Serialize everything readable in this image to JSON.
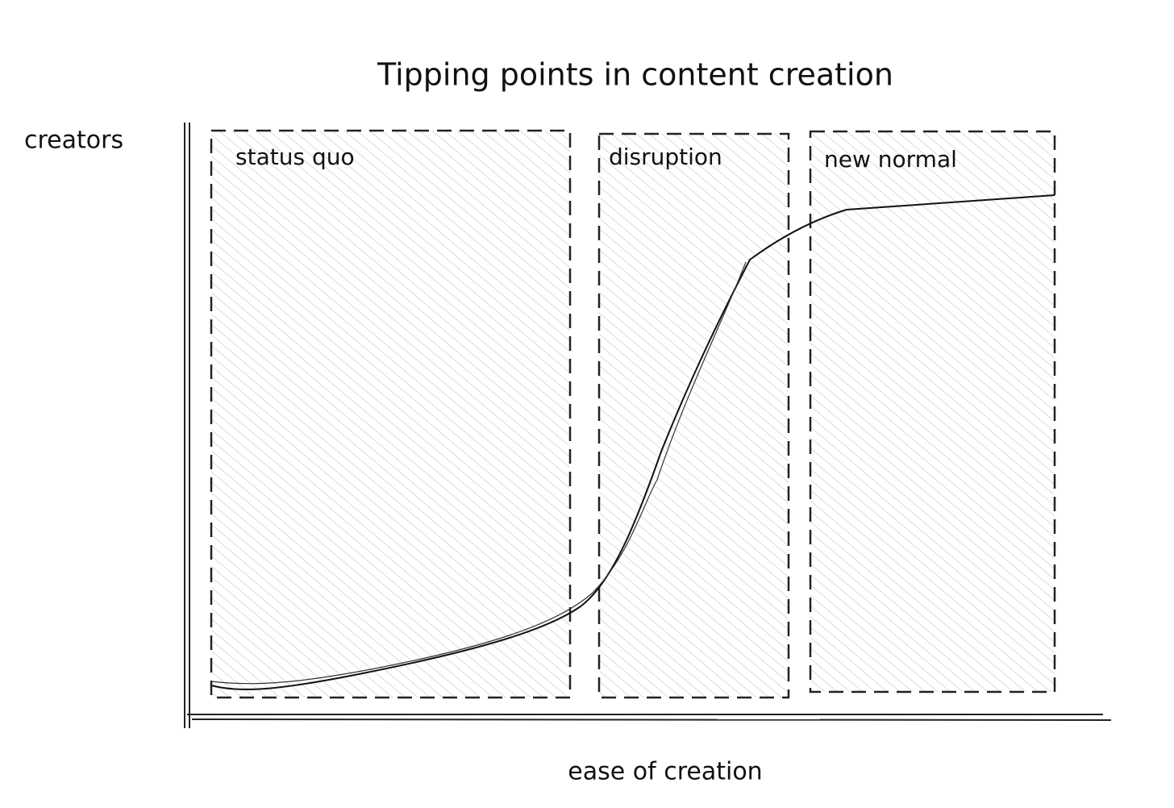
{
  "title": "Tipping points in content creation",
  "y_axis_label": "creators",
  "x_axis_label": "ease of creation",
  "regions": [
    {
      "label": "status quo"
    },
    {
      "label": "disruption"
    },
    {
      "label": "new normal"
    }
  ]
}
